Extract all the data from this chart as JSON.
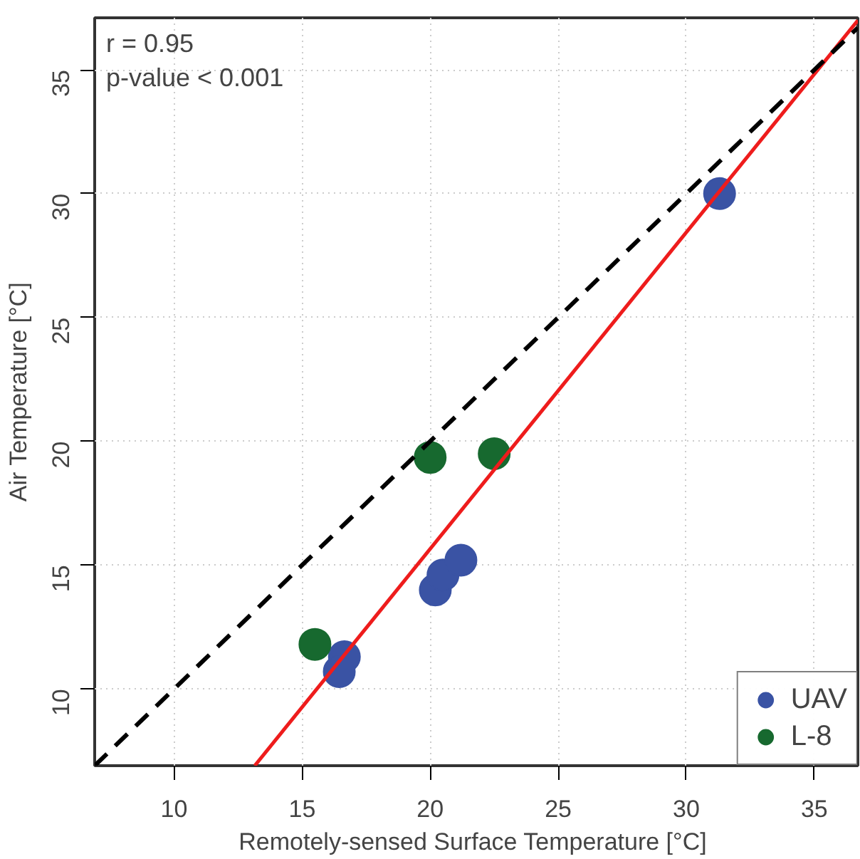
{
  "chart_data": {
    "type": "scatter",
    "xlabel": "Remotely-sensed  Surface Temperature [°C]",
    "ylabel": "Air Temperature [°C]",
    "annotations": [
      "r = 0.95",
      "p-value < 0.001"
    ],
    "series": [
      {
        "name": "UAV",
        "color": "#3a53a4",
        "x": [
          31.3,
          16.65,
          16.45,
          20.2,
          20.5,
          21.2
        ],
        "values": [
          30.0,
          11.3,
          10.7,
          14.0,
          14.6,
          15.2
        ],
        "marker": "circle"
      },
      {
        "name": "L-8",
        "color": "#17692f",
        "x": [
          20.0,
          22.5,
          15.5
        ],
        "values": [
          19.35,
          19.5,
          11.8
        ],
        "marker": "circle"
      },
      {
        "type": "line",
        "color": "#ee1c1c",
        "line_style": "solid",
        "x": [
          13.15,
          36.7
        ],
        "values": [
          6.9,
          37.0
        ]
      },
      {
        "type": "line",
        "color": "#000000",
        "line_style": "dashed",
        "x": [
          6.9,
          36.7
        ],
        "values": [
          6.9,
          36.7
        ]
      }
    ],
    "xlim": [
      6.9,
      36.7
    ],
    "ylim": [
      6.9,
      37.1
    ],
    "xticks": [
      10,
      15,
      20,
      25,
      30,
      35
    ],
    "yticks": [
      10,
      15,
      20,
      25,
      30,
      35
    ],
    "grid": true,
    "legend": "bottom right"
  }
}
